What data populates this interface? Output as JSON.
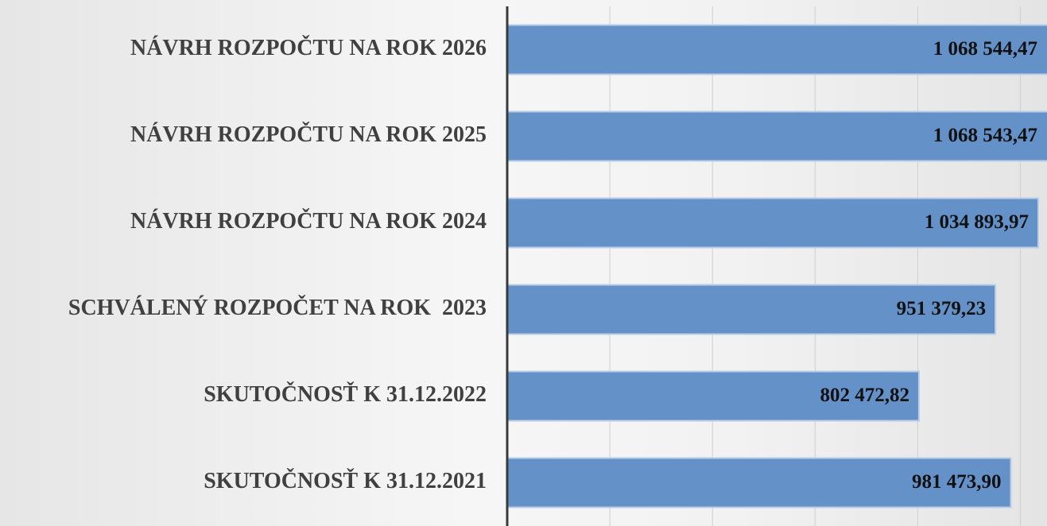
{
  "chart_data": {
    "type": "bar",
    "orientation": "horizontal",
    "categories": [
      "NÁVRH ROZPOČTU NA ROK 2026",
      "NÁVRH ROZPOČTU NA ROK 2025",
      "NÁVRH ROZPOČTU NA ROK 2024",
      "SCHVÁLENÝ ROZPOČET NA ROK  2023",
      "SKUTOČNOSŤ K 31.12.2022",
      "SKUTOČNOSŤ K 31.12.2021"
    ],
    "values": [
      1068544.47,
      1068543.47,
      1034893.97,
      951379.23,
      802472.82,
      981473.9
    ],
    "value_labels": [
      "1 068 544,47",
      "1 068 543,47",
      "1 034 893,97",
      "951 379,23",
      "802 472,82",
      "981 473,90"
    ],
    "color": "#6591c9",
    "xlim": [
      0,
      1100000
    ],
    "xticks": [
      0,
      200000,
      400000,
      600000,
      800000,
      1000000
    ],
    "grid": true
  }
}
